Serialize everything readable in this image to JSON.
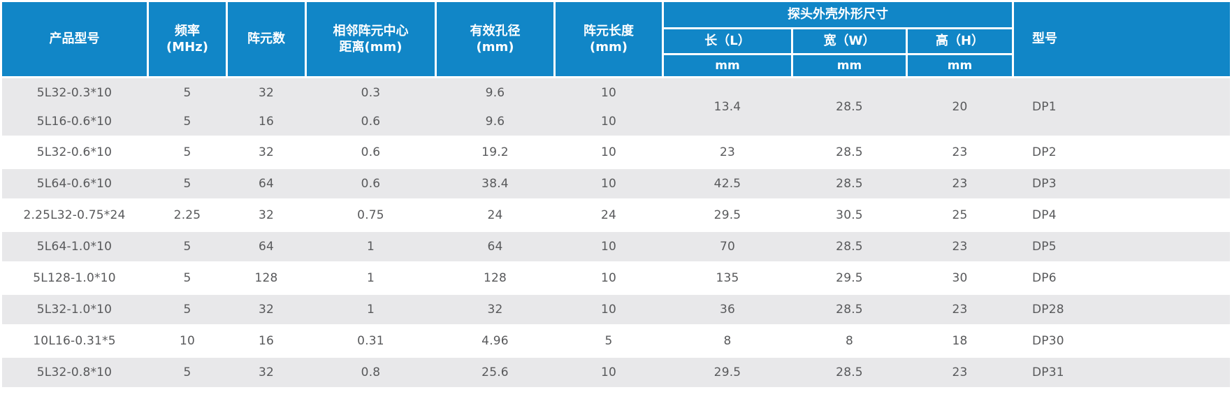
{
  "colors": {
    "header_blue": "#1186c7",
    "row_gray": "#e8e8ea",
    "body_text": "#58595b"
  },
  "table": {
    "header": {
      "product_model": "产品型号",
      "frequency": "频率\n(MHz)",
      "element_count": "阵元数",
      "pitch": "相邻阵元中心\n距离(mm)",
      "aperture": "有效孔径\n(mm)",
      "element_length": "阵元长度\n(mm)",
      "housing_group": "探头外壳外形尺寸",
      "length": "长（L）",
      "width": "宽（W）",
      "height": "高（H）",
      "unit_mm_l": "mm",
      "unit_mm_w": "mm",
      "unit_mm_h": "mm",
      "model_code": "型号"
    },
    "merged_group": {
      "rows": [
        {
          "model": "5L32-0.3*10",
          "frequency": "5",
          "elements": "32",
          "pitch": "0.3",
          "aperture": "9.6",
          "element_length": "10"
        },
        {
          "model": "5L16-0.6*10",
          "frequency": "5",
          "elements": "16",
          "pitch": "0.6",
          "aperture": "9.6",
          "element_length": "10"
        }
      ],
      "L": "13.4",
      "W": "28.5",
      "H": "20",
      "model_code": "DP1"
    },
    "rows": [
      {
        "model": "5L32-0.6*10",
        "frequency": "5",
        "elements": "32",
        "pitch": "0.6",
        "aperture": "19.2",
        "element_length": "10",
        "L": "23",
        "W": "28.5",
        "H": "23",
        "model_code": "DP2"
      },
      {
        "model": "5L64-0.6*10",
        "frequency": "5",
        "elements": "64",
        "pitch": "0.6",
        "aperture": "38.4",
        "element_length": "10",
        "L": "42.5",
        "W": "28.5",
        "H": "23",
        "model_code": "DP3"
      },
      {
        "model": "2.25L32-0.75*24",
        "frequency": "2.25",
        "elements": "32",
        "pitch": "0.75",
        "aperture": "24",
        "element_length": "24",
        "L": "29.5",
        "W": "30.5",
        "H": "25",
        "model_code": "DP4"
      },
      {
        "model": "5L64-1.0*10",
        "frequency": "5",
        "elements": "64",
        "pitch": "1",
        "aperture": "64",
        "element_length": "10",
        "L": "70",
        "W": "28.5",
        "H": "23",
        "model_code": "DP5"
      },
      {
        "model": "5L128-1.0*10",
        "frequency": "5",
        "elements": "128",
        "pitch": "1",
        "aperture": "128",
        "element_length": "10",
        "L": "135",
        "W": "29.5",
        "H": "30",
        "model_code": "DP6"
      },
      {
        "model": "5L32-1.0*10",
        "frequency": "5",
        "elements": "32",
        "pitch": "1",
        "aperture": "32",
        "element_length": "10",
        "L": "36",
        "W": "28.5",
        "H": "23",
        "model_code": "DP28"
      },
      {
        "model": "10L16-0.31*5",
        "frequency": "10",
        "elements": "16",
        "pitch": "0.31",
        "aperture": "4.96",
        "element_length": "5",
        "L": "8",
        "W": "8",
        "H": "18",
        "model_code": "DP30"
      },
      {
        "model": "5L32-0.8*10",
        "frequency": "5",
        "elements": "32",
        "pitch": "0.8",
        "aperture": "25.6",
        "element_length": "10",
        "L": "29.5",
        "W": "28.5",
        "H": "23",
        "model_code": "DP31"
      }
    ]
  }
}
